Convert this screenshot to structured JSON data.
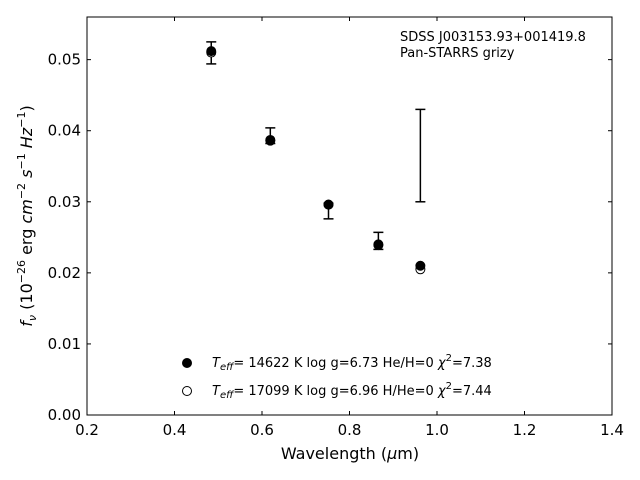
{
  "chart_data": {
    "type": "scatter",
    "title": "",
    "xlabel": "Wavelength (μm)",
    "ylabel": "f_ν (10^-26 erg cm^-2 s^-1 Hz^-1)",
    "xlim": [
      0.2,
      1.4
    ],
    "ylim": [
      0.0,
      0.056
    ],
    "xticks": [
      0.2,
      0.4,
      0.6,
      0.8,
      1.0,
      1.2,
      1.4
    ],
    "xtick_labels": [
      "0.2",
      "0.4",
      "0.6",
      "0.8",
      "1.0",
      "1.2",
      "1.4"
    ],
    "yticks": [
      0.0,
      0.01,
      0.02,
      0.03,
      0.04,
      0.05
    ],
    "ytick_labels": [
      "0.00",
      "0.01",
      "0.02",
      "0.03",
      "0.04",
      "0.05"
    ],
    "grid": false,
    "annotation": {
      "line1": "SDSS J003153.93+001419.8",
      "line2": "Pan-STARRS grizy"
    },
    "observed": {
      "x": [
        0.484,
        0.619,
        0.752,
        0.866,
        0.962
      ],
      "y": [
        0.0511,
        0.0393,
        0.0296,
        0.0245,
        0.0365
      ],
      "yerr_low": [
        0.0017,
        0.0011,
        0.002,
        0.0012,
        0.0065
      ],
      "yerr_high": [
        0.0014,
        0.0011,
        0.0002,
        0.0012,
        0.0065
      ]
    },
    "series": [
      {
        "name": "T_eff= 14622 K  log g=6.73  He/H=0  χ²=7.38",
        "marker": "filled-circle",
        "x": [
          0.484,
          0.619,
          0.752,
          0.866,
          0.962
        ],
        "y": [
          0.0512,
          0.0386,
          0.0296,
          0.024,
          0.021
        ]
      },
      {
        "name": "T_eff= 17099 K  log g=6.96  H/He=0  χ²=7.44",
        "marker": "open-circle",
        "x": [
          0.484,
          0.619,
          0.752,
          0.866,
          0.962
        ],
        "y": [
          0.051,
          0.0387,
          0.0296,
          0.0239,
          0.0205
        ]
      }
    ],
    "legend": {
      "placement": "lower-center",
      "entries": [
        {
          "teff": "= 14622 K  log g=6.73  He/H=0  ",
          "chi": "=7.38"
        },
        {
          "teff": "= 17099 K  log g=6.96  H/He=0  ",
          "chi": "=7.44"
        }
      ]
    },
    "colors": {
      "marker": "#000000",
      "axes": "#000000",
      "background": "#ffffff"
    }
  }
}
